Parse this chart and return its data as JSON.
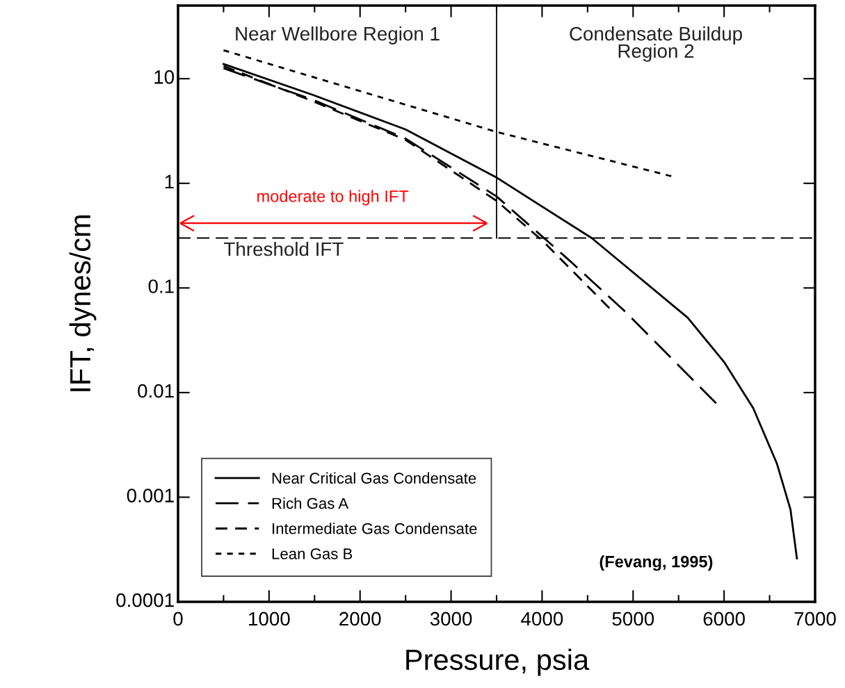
{
  "chart_data": {
    "type": "line",
    "xlabel": "Pressure, psia",
    "ylabel": "IFT, dynes/cm",
    "log": "y",
    "xlim": [
      0,
      7000
    ],
    "xticks": [
      0,
      1000,
      2000,
      3000,
      4000,
      5000,
      6000,
      7000
    ],
    "ylim": [
      0.0001,
      50
    ],
    "yticks": [
      {
        "value": 0.0001,
        "label": "0.0001"
      },
      {
        "value": 0.001,
        "label": "0.001"
      },
      {
        "value": 0.01,
        "label": "0.01"
      },
      {
        "value": 0.1,
        "label": "0.1"
      },
      {
        "value": 1,
        "label": "1"
      },
      {
        "value": 10,
        "label": "10"
      }
    ],
    "grid": false,
    "legend": "bottom left",
    "series": [
      {
        "name": "Near Critical Gas Condensate",
        "color": "#000000",
        "line_style": "solid",
        "x": [
          500,
          1480,
          2500,
          3490,
          4545,
          5600,
          6006,
          6320,
          6580,
          6730,
          6800
        ],
        "values": [
          13.8,
          7.0,
          3.27,
          1.15,
          0.3,
          0.052,
          0.0193,
          0.0071,
          0.0021,
          0.00076,
          0.00026
        ]
      },
      {
        "name": "Rich Gas A",
        "color": "#000000",
        "line_style": "longdash",
        "x": [
          500,
          1500,
          2500,
          3500,
          4280,
          4900,
          5913
        ],
        "values": [
          12.6,
          6.2,
          2.68,
          0.75,
          0.19,
          0.061,
          0.0079
        ]
      },
      {
        "name": "Intermediate Gas Condensate",
        "color": "#000000",
        "line_style": "dashed",
        "x": [
          500,
          1500,
          2500,
          3500,
          4010,
          4740
        ],
        "values": [
          13.2,
          6.0,
          2.6,
          0.68,
          0.28,
          0.064
        ]
      },
      {
        "name": "Lean Gas B",
        "color": "#000000",
        "line_style": "dotted",
        "x": [
          500,
          3500,
          5420
        ],
        "values": [
          18.7,
          3.1,
          1.17
        ]
      }
    ],
    "ref_lines": [
      {
        "axis": "y",
        "value": 0.3,
        "label": "Threshold IFT",
        "line_style": "dashed",
        "color": "#000000"
      },
      {
        "axis": "x",
        "value": 3500,
        "line_style": "solid",
        "color": "#000000"
      }
    ],
    "annotations": [
      "Near Wellbore Region 1",
      "Condensate Buildup\nRegion 2",
      "moderate to high IFT",
      "(Fevang, 1995)"
    ]
  }
}
